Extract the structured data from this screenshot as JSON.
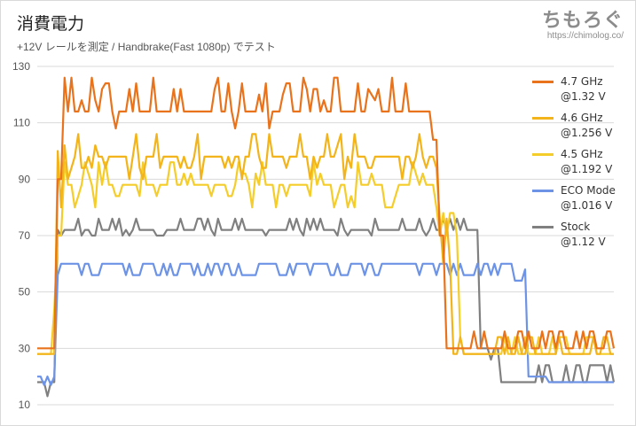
{
  "header": {
    "title": "消費電力",
    "subtitle": "+12V レールを測定  / Handbrake(Fast 1080p) でテスト",
    "logo_text": "ちもろぐ",
    "logo_url": "https://chimolog.co/"
  },
  "chart_data": {
    "type": "line",
    "title": "消費電力",
    "subtitle": "+12V レールを測定  / Handbrake(Fast 1080p) でテスト",
    "xlabel": "",
    "ylabel": "",
    "ylim": [
      10,
      130
    ],
    "yticks": [
      10,
      30,
      50,
      70,
      90,
      110,
      130
    ],
    "grid": "horizontal",
    "legend_position": "right",
    "x_count": 170,
    "series": [
      {
        "name": "4.7 GHz\n@1.32 V",
        "color": "#e8731c",
        "phases": [
          {
            "from": 0,
            "to": 6,
            "base": 30,
            "alt": []
          },
          {
            "from": 6,
            "to": 8,
            "base": 90,
            "alt": [
              110
            ]
          },
          {
            "from": 8,
            "to": 116,
            "base": 114,
            "alt": [
              118,
              122,
              126,
              108,
              120,
              124
            ]
          },
          {
            "from": 116,
            "to": 118,
            "base": 104,
            "alt": [
              112
            ]
          },
          {
            "from": 118,
            "to": 120,
            "base": 70,
            "alt": []
          },
          {
            "from": 120,
            "to": 170,
            "base": 30,
            "alt": [
              36
            ]
          }
        ]
      },
      {
        "name": "4.6 GHz\n@1.256 V",
        "color": "#f2b41a",
        "phases": [
          {
            "from": 0,
            "to": 6,
            "base": 28,
            "alt": []
          },
          {
            "from": 6,
            "to": 8,
            "base": 80,
            "alt": [
              100
            ]
          },
          {
            "from": 8,
            "to": 118,
            "base": 98,
            "alt": [
              102,
              106,
              94,
              90
            ]
          },
          {
            "from": 118,
            "to": 122,
            "base": 76,
            "alt": [
              60
            ]
          },
          {
            "from": 122,
            "to": 170,
            "base": 28,
            "alt": [
              34
            ]
          }
        ]
      },
      {
        "name": "4.5 GHz\n@1.192 V",
        "color": "#f5cd2a",
        "phases": [
          {
            "from": 0,
            "to": 6,
            "base": 28,
            "alt": [
              44
            ]
          },
          {
            "from": 6,
            "to": 8,
            "base": 70,
            "alt": [
              84
            ]
          },
          {
            "from": 8,
            "to": 118,
            "base": 88,
            "alt": [
              92,
              96,
              84,
              80
            ]
          },
          {
            "from": 118,
            "to": 124,
            "base": 70,
            "alt": [
              78
            ]
          },
          {
            "from": 124,
            "to": 170,
            "base": 28,
            "alt": [
              34
            ]
          }
        ]
      },
      {
        "name": "ECO Mode\n@1.016 V",
        "color": "#6d93e6",
        "phases": [
          {
            "from": 0,
            "to": 6,
            "base": 20,
            "alt": [
              17
            ]
          },
          {
            "from": 6,
            "to": 140,
            "base": 60,
            "alt": [
              56
            ]
          },
          {
            "from": 140,
            "to": 144,
            "base": 54,
            "alt": [
              58
            ]
          },
          {
            "from": 144,
            "to": 150,
            "base": 20,
            "alt": [
              16
            ]
          },
          {
            "from": 150,
            "to": 170,
            "base": 18,
            "alt": []
          }
        ]
      },
      {
        "name": "Stock\n@1.12 V",
        "color": "#808080",
        "phases": [
          {
            "from": 0,
            "to": 6,
            "base": 18,
            "alt": [
              13
            ]
          },
          {
            "from": 6,
            "to": 130,
            "base": 72,
            "alt": [
              76,
              70
            ]
          },
          {
            "from": 130,
            "to": 136,
            "base": 30,
            "alt": [
              26
            ]
          },
          {
            "from": 136,
            "to": 170,
            "base": 18,
            "alt": [
              24
            ]
          }
        ]
      }
    ]
  }
}
